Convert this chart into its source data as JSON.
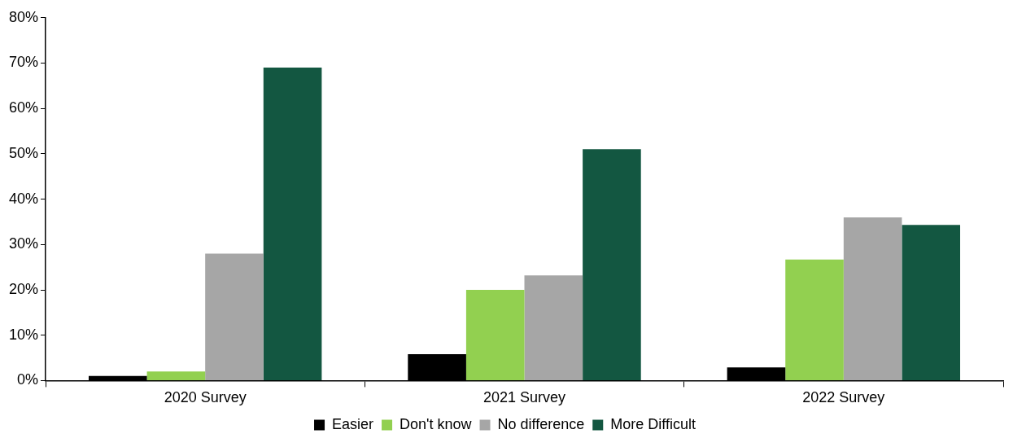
{
  "chart_data": {
    "type": "bar",
    "categories": [
      "2020 Survey",
      "2021 Survey",
      "2022 Survey"
    ],
    "series": [
      {
        "name": "Easier",
        "color": "#000000",
        "values": [
          1,
          5.8,
          2.9
        ]
      },
      {
        "name": "Don't know",
        "color": "#92d050",
        "values": [
          2,
          20,
          26.7
        ]
      },
      {
        "name": "No difference",
        "color": "#a6a6a6",
        "values": [
          28,
          23.2,
          36
        ]
      },
      {
        "name": "More Difficult",
        "color": "#135741",
        "values": [
          69,
          51,
          34.3
        ]
      }
    ],
    "ylim": [
      0,
      80
    ],
    "yticks": [
      {
        "value": 0,
        "label": "0%"
      },
      {
        "value": 10,
        "label": "10%"
      },
      {
        "value": 20,
        "label": "20%"
      },
      {
        "value": 30,
        "label": "30%"
      },
      {
        "value": 40,
        "label": "40%"
      },
      {
        "value": 50,
        "label": "50%"
      },
      {
        "value": 60,
        "label": "60%"
      },
      {
        "value": 70,
        "label": "70%"
      },
      {
        "value": 80,
        "label": "80%"
      }
    ],
    "grid": false,
    "legend": "bottom"
  }
}
